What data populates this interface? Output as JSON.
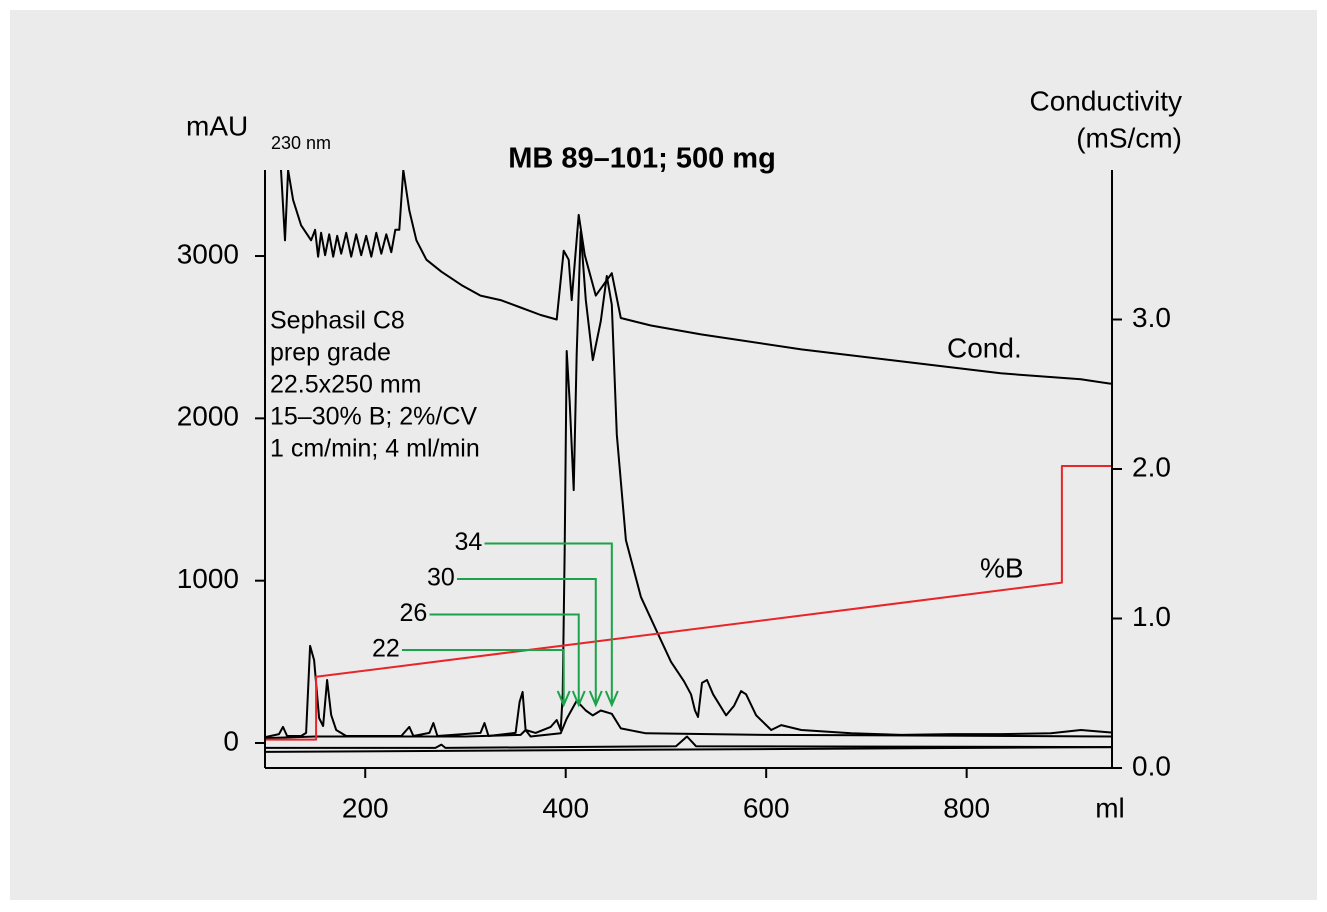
{
  "chart_data": {
    "type": "line",
    "title": "MB 89–101;  500 mg",
    "y_label": "mAU",
    "y_label_sub": "230 nm",
    "y2_label": [
      "Conductivity",
      "(mS/cm)"
    ],
    "x_label": "ml",
    "annotation": [
      "Sephasil C8",
      "prep grade",
      "22.5x250 mm",
      "15–30% B; 2%/CV",
      "1 cm/min; 4 ml/min"
    ],
    "xlim": [
      100,
      945
    ],
    "xticks": [
      200,
      400,
      600,
      800
    ],
    "ylim": [
      -154,
      3530
    ],
    "yticks": [
      0,
      1000,
      2000,
      3000
    ],
    "y2lim": [
      0,
      4.0
    ],
    "y2ticks": [
      {
        "value": 0,
        "label": "0.0"
      },
      {
        "value": 1,
        "label": "1.0"
      },
      {
        "value": 2,
        "label": "2.0"
      },
      {
        "value": 3,
        "label": "3.0"
      }
    ],
    "series": [
      {
        "color": "#000000",
        "x": [
          101,
          114,
          118,
          122,
          136,
          141,
          145,
          149,
          154,
          158,
          162,
          166,
          171,
          181,
          236,
          244,
          248,
          264,
          268,
          272,
          315,
          319,
          323,
          350,
          354,
          357,
          360,
          370,
          385,
          391,
          395,
          397,
          399,
          401,
          404,
          408,
          411,
          415,
          420,
          427,
          435,
          441,
          446,
          451,
          460,
          475,
          490,
          505,
          518,
          525,
          529,
          532,
          536,
          541,
          547,
          560,
          568,
          575,
          580,
          590,
          600,
          605,
          615,
          635,
          685,
          735,
          784,
          834,
          884,
          914,
          944
        ],
        "values": [
          37,
          55,
          99,
          43,
          43,
          62,
          598,
          511,
          154,
          105,
          388,
          172,
          80,
          43,
          43,
          99,
          43,
          62,
          123,
          43,
          62,
          123,
          43,
          62,
          253,
          314,
          80,
          62,
          99,
          142,
          80,
          300,
          1200,
          2415,
          2100,
          1558,
          2400,
          3150,
          2729,
          2359,
          2600,
          2877,
          2700,
          1900,
          1250,
          900,
          700,
          500,
          380,
          300,
          200,
          160,
          370,
          388,
          300,
          170,
          230,
          320,
          300,
          170,
          110,
          80,
          110,
          80,
          60,
          50,
          55,
          55,
          60,
          80,
          65
        ]
      },
      {
        "color": "#000000",
        "x": [
          101,
          150,
          300,
          355,
          360,
          365,
          395,
          401,
          411,
          420,
          427,
          435,
          446,
          455,
          480,
          600,
          800,
          944
        ],
        "values": [
          30,
          40,
          40,
          50,
          80,
          40,
          60,
          150,
          260,
          200,
          170,
          200,
          180,
          90,
          60,
          50,
          45,
          40
        ]
      },
      {
        "color": "#000000",
        "x": [
          101,
          270,
          276,
          280,
          510,
          521,
          530,
          944
        ],
        "values": [
          -30,
          -30,
          -10,
          -30,
          -20,
          40,
          -20,
          -25
        ]
      },
      {
        "color": "#000000",
        "x": [
          101,
          944
        ],
        "values": [
          -55,
          -25
        ]
      },
      {
        "name": "Cond.",
        "color": "#000000",
        "axis": "y2",
        "x": [
          116,
          120,
          123,
          128,
          136,
          146,
          150,
          153,
          156,
          160,
          164,
          168,
          172,
          176,
          181,
          186,
          191,
          196,
          201,
          206,
          211,
          216,
          221,
          226,
          230,
          234,
          238,
          244,
          251,
          261,
          276,
          296,
          315,
          335,
          355,
          375,
          391,
          398,
          403,
          406,
          413,
          419,
          430,
          446,
          455,
          485,
          535,
          635,
          735,
          834,
          914,
          944
        ],
        "values": [
          4.0,
          3.53,
          4.0,
          3.8,
          3.63,
          3.53,
          3.6,
          3.42,
          3.58,
          3.43,
          3.57,
          3.42,
          3.56,
          3.44,
          3.58,
          3.42,
          3.57,
          3.43,
          3.56,
          3.42,
          3.58,
          3.44,
          3.57,
          3.45,
          3.6,
          3.6,
          4.0,
          3.73,
          3.53,
          3.4,
          3.32,
          3.23,
          3.16,
          3.13,
          3.08,
          3.03,
          3.0,
          3.46,
          3.4,
          3.13,
          3.7,
          3.43,
          3.16,
          3.31,
          3.01,
          2.96,
          2.9,
          2.8,
          2.72,
          2.64,
          2.6,
          2.57
        ]
      },
      {
        "name": "%B",
        "color": "#e8262a",
        "axis": "y2",
        "x": [
          101,
          151,
          151,
          895,
          895,
          944
        ],
        "values": [
          0.19,
          0.19,
          0.61,
          1.24,
          2.02,
          2.02
        ]
      }
    ],
    "fractions": [
      {
        "label": "22",
        "x": 398
      },
      {
        "label": "26",
        "x": 413
      },
      {
        "label": "30",
        "x": 430
      },
      {
        "label": "34",
        "x": 446
      }
    ],
    "fraction_color": "#1aa34a"
  }
}
